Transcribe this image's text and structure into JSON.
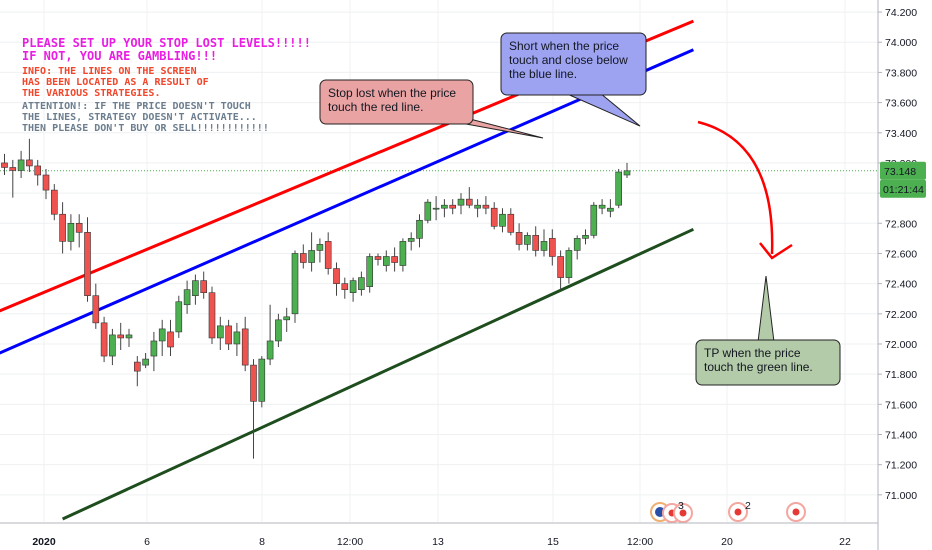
{
  "notes": {
    "warning_line1": "PLEASE SET UP YOUR STOP LOST LEVELS!!!!!",
    "warning_line2": "IF NOT, YOU ARE GAMBLING!!!",
    "info_lines": [
      "INFO: THE LINES ON THE SCREEN",
      "HAS BEEN LOCATED AS A RESULT OF",
      "THE VARIOUS STRATEGIES."
    ],
    "attention_lines": [
      "ATTENTION!: IF THE PRICE DOESN'T TOUCH",
      "THE LINES, STRATEGY DOESN'T ACTIVATE...",
      "THEN PLEASE DON'T BUY OR SELL!!!!!!!!!!!!"
    ]
  },
  "callouts": {
    "stop": [
      "Stop lost when the price",
      "touch the red line."
    ],
    "short": [
      "Short when the price",
      "touch and close below",
      "the blue line."
    ],
    "tp": [
      "TP when the price",
      "touch the green line."
    ]
  },
  "colors": {
    "bull": "#4caf50",
    "bear": "#ef5350",
    "red_line": "#ff0000",
    "blue_line": "#0000ff",
    "green_line": "#1e4d1e",
    "stop_box": "#e9a3a3",
    "short_box": "#9da3f0",
    "tp_box": "#b3cba8",
    "price_tag": "#4caf50",
    "arrow": "#ff0000"
  },
  "axis": {
    "y_ticks": [
      "74.200",
      "74.000",
      "73.800",
      "73.600",
      "73.400",
      "73.200",
      "73.000",
      "72.800",
      "72.600",
      "72.400",
      "72.200",
      "72.000",
      "71.800",
      "71.600",
      "71.400",
      "71.200",
      "71.000"
    ],
    "x_ticks": [
      "2020",
      "6",
      "8",
      "12:00",
      "13",
      "15",
      "12:00",
      "20",
      "22"
    ],
    "price_label": "73.148",
    "countdown_label": "01:21:44"
  },
  "events": {
    "badge_a": "3",
    "badge_b": "2"
  },
  "chart_data": {
    "type": "candlestick",
    "ylim": [
      70.82,
      74.28
    ],
    "candles": [
      {
        "o": 73.2,
        "h": 73.26,
        "l": 73.12,
        "c": 73.17
      },
      {
        "o": 73.17,
        "h": 73.22,
        "l": 72.97,
        "c": 73.15
      },
      {
        "o": 73.15,
        "h": 73.28,
        "l": 73.1,
        "c": 73.22
      },
      {
        "o": 73.22,
        "h": 73.36,
        "l": 73.14,
        "c": 73.18
      },
      {
        "o": 73.18,
        "h": 73.22,
        "l": 73.05,
        "c": 73.12
      },
      {
        "o": 73.12,
        "h": 73.16,
        "l": 72.96,
        "c": 73.02
      },
      {
        "o": 73.02,
        "h": 73.06,
        "l": 72.82,
        "c": 72.86
      },
      {
        "o": 72.86,
        "h": 72.94,
        "l": 72.6,
        "c": 72.68
      },
      {
        "o": 72.68,
        "h": 72.86,
        "l": 72.62,
        "c": 72.8
      },
      {
        "o": 72.8,
        "h": 72.86,
        "l": 72.64,
        "c": 72.74
      },
      {
        "o": 72.74,
        "h": 72.84,
        "l": 72.28,
        "c": 72.32
      },
      {
        "o": 72.32,
        "h": 72.4,
        "l": 72.1,
        "c": 72.14
      },
      {
        "o": 72.14,
        "h": 72.18,
        "l": 71.88,
        "c": 71.92
      },
      {
        "o": 71.92,
        "h": 72.1,
        "l": 71.86,
        "c": 72.06
      },
      {
        "o": 72.06,
        "h": 72.14,
        "l": 71.96,
        "c": 72.04
      },
      {
        "o": 72.04,
        "h": 72.1,
        "l": 71.98,
        "c": 72.06
      },
      {
        "o": 71.88,
        "h": 71.92,
        "l": 71.72,
        "c": 71.82
      },
      {
        "o": 71.86,
        "h": 71.94,
        "l": 71.84,
        "c": 71.9
      },
      {
        "o": 71.92,
        "h": 72.08,
        "l": 71.82,
        "c": 72.02
      },
      {
        "o": 72.02,
        "h": 72.16,
        "l": 71.92,
        "c": 72.1
      },
      {
        "o": 72.08,
        "h": 72.16,
        "l": 71.92,
        "c": 71.98
      },
      {
        "o": 72.08,
        "h": 72.32,
        "l": 72.04,
        "c": 72.28
      },
      {
        "o": 72.26,
        "h": 72.42,
        "l": 72.2,
        "c": 72.36
      },
      {
        "o": 72.32,
        "h": 72.46,
        "l": 72.26,
        "c": 72.42
      },
      {
        "o": 72.42,
        "h": 72.48,
        "l": 72.3,
        "c": 72.34
      },
      {
        "o": 72.34,
        "h": 72.38,
        "l": 72.0,
        "c": 72.04
      },
      {
        "o": 72.04,
        "h": 72.18,
        "l": 71.96,
        "c": 72.12
      },
      {
        "o": 72.12,
        "h": 72.16,
        "l": 71.96,
        "c": 72.0
      },
      {
        "o": 72.0,
        "h": 72.14,
        "l": 71.92,
        "c": 72.08
      },
      {
        "o": 72.1,
        "h": 72.18,
        "l": 71.82,
        "c": 71.86
      },
      {
        "o": 71.86,
        "h": 71.9,
        "l": 71.24,
        "c": 71.62
      },
      {
        "o": 71.62,
        "h": 71.92,
        "l": 71.58,
        "c": 71.9
      },
      {
        "o": 71.9,
        "h": 72.26,
        "l": 71.86,
        "c": 72.02
      },
      {
        "o": 72.02,
        "h": 72.2,
        "l": 71.98,
        "c": 72.16
      },
      {
        "o": 72.16,
        "h": 72.24,
        "l": 72.08,
        "c": 72.18
      },
      {
        "o": 72.2,
        "h": 72.62,
        "l": 72.14,
        "c": 72.6
      },
      {
        "o": 72.6,
        "h": 72.66,
        "l": 72.5,
        "c": 72.54
      },
      {
        "o": 72.54,
        "h": 72.74,
        "l": 72.48,
        "c": 72.62
      },
      {
        "o": 72.62,
        "h": 72.7,
        "l": 72.54,
        "c": 72.66
      },
      {
        "o": 72.68,
        "h": 72.74,
        "l": 72.46,
        "c": 72.5
      },
      {
        "o": 72.5,
        "h": 72.54,
        "l": 72.32,
        "c": 72.4
      },
      {
        "o": 72.4,
        "h": 72.44,
        "l": 72.3,
        "c": 72.36
      },
      {
        "o": 72.34,
        "h": 72.44,
        "l": 72.28,
        "c": 72.42
      },
      {
        "o": 72.36,
        "h": 72.48,
        "l": 72.32,
        "c": 72.44
      },
      {
        "o": 72.38,
        "h": 72.6,
        "l": 72.34,
        "c": 72.58
      },
      {
        "o": 72.58,
        "h": 72.6,
        "l": 72.52,
        "c": 72.56
      },
      {
        "o": 72.52,
        "h": 72.62,
        "l": 72.48,
        "c": 72.58
      },
      {
        "o": 72.58,
        "h": 72.64,
        "l": 72.48,
        "c": 72.54
      },
      {
        "o": 72.52,
        "h": 72.7,
        "l": 72.48,
        "c": 72.68
      },
      {
        "o": 72.68,
        "h": 72.74,
        "l": 72.62,
        "c": 72.7
      },
      {
        "o": 72.7,
        "h": 72.86,
        "l": 72.64,
        "c": 72.82
      },
      {
        "o": 72.82,
        "h": 72.96,
        "l": 72.8,
        "c": 72.94
      },
      {
        "o": 72.9,
        "h": 72.98,
        "l": 72.82,
        "c": 72.9
      },
      {
        "o": 72.9,
        "h": 72.96,
        "l": 72.84,
        "c": 72.92
      },
      {
        "o": 72.92,
        "h": 72.96,
        "l": 72.86,
        "c": 72.9
      },
      {
        "o": 72.92,
        "h": 73.0,
        "l": 72.86,
        "c": 72.96
      },
      {
        "o": 72.96,
        "h": 73.04,
        "l": 72.9,
        "c": 72.92
      },
      {
        "o": 72.9,
        "h": 72.96,
        "l": 72.84,
        "c": 72.92
      },
      {
        "o": 72.92,
        "h": 72.98,
        "l": 72.86,
        "c": 72.9
      },
      {
        "o": 72.9,
        "h": 72.94,
        "l": 72.76,
        "c": 72.78
      },
      {
        "o": 72.78,
        "h": 72.9,
        "l": 72.74,
        "c": 72.86
      },
      {
        "o": 72.86,
        "h": 72.9,
        "l": 72.72,
        "c": 72.74
      },
      {
        "o": 72.74,
        "h": 72.8,
        "l": 72.62,
        "c": 72.66
      },
      {
        "o": 72.66,
        "h": 72.74,
        "l": 72.62,
        "c": 72.72
      },
      {
        "o": 72.72,
        "h": 72.78,
        "l": 72.58,
        "c": 72.62
      },
      {
        "o": 72.62,
        "h": 72.76,
        "l": 72.58,
        "c": 72.68
      },
      {
        "o": 72.7,
        "h": 72.76,
        "l": 72.52,
        "c": 72.58
      },
      {
        "o": 72.58,
        "h": 72.62,
        "l": 72.36,
        "c": 72.44
      },
      {
        "o": 72.44,
        "h": 72.64,
        "l": 72.4,
        "c": 72.62
      },
      {
        "o": 72.62,
        "h": 72.72,
        "l": 72.56,
        "c": 72.7
      },
      {
        "o": 72.7,
        "h": 72.76,
        "l": 72.66,
        "c": 72.72
      },
      {
        "o": 72.72,
        "h": 72.94,
        "l": 72.7,
        "c": 72.92
      },
      {
        "o": 72.9,
        "h": 72.96,
        "l": 72.86,
        "c": 72.92
      },
      {
        "o": 72.88,
        "h": 72.96,
        "l": 72.84,
        "c": 72.9
      },
      {
        "o": 72.92,
        "h": 73.16,
        "l": 72.9,
        "c": 73.14
      },
      {
        "o": 73.12,
        "h": 73.2,
        "l": 73.1,
        "c": 73.148
      }
    ],
    "trendlines": [
      {
        "name": "red",
        "x": [
          -1,
          83
        ],
        "y": [
          72.21,
          74.14
        ]
      },
      {
        "name": "blue",
        "x": [
          -1,
          83
        ],
        "y": [
          71.93,
          73.95
        ]
      },
      {
        "name": "green",
        "x": [
          7,
          83
        ],
        "y": [
          70.84,
          72.76
        ]
      }
    ]
  }
}
